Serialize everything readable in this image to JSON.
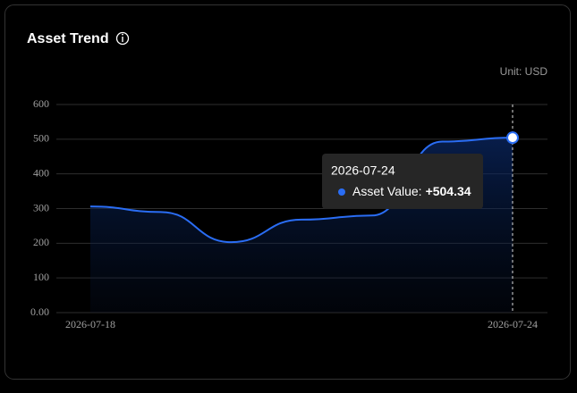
{
  "chart_data": {
    "type": "area",
    "title": "Asset Trend",
    "unit": "Unit: USD",
    "categories": [
      "2026-07-18",
      null,
      null,
      null,
      null,
      null,
      "2026-07-24"
    ],
    "values": [
      306,
      290,
      203,
      268,
      280,
      493,
      504.34
    ],
    "color": "#2a6df4",
    "ylim": [
      0,
      600
    ],
    "yticks": [
      {
        "value": 0,
        "label": "0.00"
      },
      100,
      200,
      300,
      400,
      500,
      600
    ],
    "grid": true,
    "tooltip": {
      "title": "2026-07-24",
      "label": "Asset Value:",
      "value_label": "+504.34"
    }
  }
}
